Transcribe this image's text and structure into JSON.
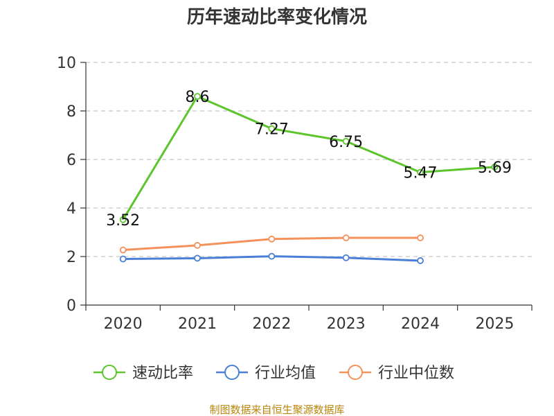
{
  "chart_data": {
    "type": "line",
    "title": "历年速动比率变化情况",
    "categories": [
      "2020",
      "2021",
      "2022",
      "2023",
      "2024",
      "2025"
    ],
    "ylim": [
      0,
      10
    ],
    "yticks": [
      0,
      2,
      4,
      6,
      8,
      10
    ],
    "grid": true,
    "legend_position": "bottom",
    "series": [
      {
        "name": "速动比率",
        "color": "#5cc52b",
        "values": [
          3.52,
          8.6,
          7.27,
          6.75,
          5.47,
          5.69
        ],
        "labels": [
          "3.52",
          "8.6",
          "7.27",
          "6.75",
          "5.47",
          "5.69"
        ],
        "show_labels": true
      },
      {
        "name": "行业均值",
        "color": "#4a7fd8",
        "values": [
          1.9,
          1.93,
          2.01,
          1.95,
          1.83,
          null
        ],
        "show_labels": false
      },
      {
        "name": "行业中位数",
        "color": "#f5915a",
        "values": [
          2.27,
          2.46,
          2.72,
          2.77,
          2.77,
          null
        ],
        "show_labels": false
      }
    ]
  },
  "source": "制图数据来自恒生聚源数据库"
}
